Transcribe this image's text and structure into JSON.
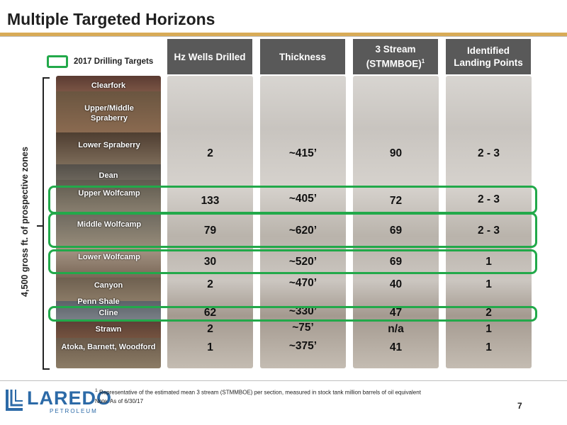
{
  "title": "Multiple Targeted Horizons",
  "legend": {
    "label": "2017 Drilling Targets",
    "color": "#22a94a"
  },
  "headers": {
    "hz_wells": "Hz Wells Drilled",
    "thickness": "Thickness",
    "stream_line1": "3 Stream",
    "stream_line2": "(STMMBOE)",
    "stream_sup": "1",
    "landing_line1": "Identified",
    "landing_line2": "Landing Points"
  },
  "side_label": "4,500 gross ft. of prospective zones",
  "zones": [
    "Clearfork",
    "Upper/Middle Spraberry",
    "Lower Spraberry",
    "Dean",
    "Upper Wolfcamp",
    "Middle Wolfcamp",
    "Lower Wolfcamp",
    "Canyon",
    "Penn Shale",
    "Cline",
    "Strawn",
    "Atoka, Barnett, Woodford"
  ],
  "rows": [
    {
      "zone": "Lower Spraberry",
      "wells": "2",
      "thickness": "~415’",
      "stream": "90",
      "landing": "2 - 3"
    },
    {
      "zone": "Upper Wolfcamp",
      "wells": "133",
      "thickness": "~405’",
      "stream": "72",
      "landing": "2 - 3"
    },
    {
      "zone": "Middle Wolfcamp",
      "wells": "79",
      "thickness": "~620’",
      "stream": "69",
      "landing": "2 - 3"
    },
    {
      "zone": "Lower Wolfcamp",
      "wells": "30",
      "thickness": "~520’",
      "stream": "69",
      "landing": "1"
    },
    {
      "zone": "Canyon",
      "wells": "2",
      "thickness": "~470’",
      "stream": "40",
      "landing": "1"
    },
    {
      "zone": "Cline",
      "wells": "62",
      "thickness": "~330’",
      "stream": "47",
      "landing": "2"
    },
    {
      "zone": "Strawn",
      "wells": "2",
      "thickness": "~75’",
      "stream": "n/a",
      "landing": "1"
    },
    {
      "zone": "Atoka, Barnett, Woodford",
      "wells": "1",
      "thickness": "~375’",
      "stream": "41",
      "landing": "1"
    }
  ],
  "highlighted_zones": [
    "Upper Wolfcamp",
    "Middle Wolfcamp",
    "Lower Wolfcamp",
    "Cline"
  ],
  "footnote_sup": "1",
  "footnote": "Representative of the estimated mean 3 stream (STMMBOE) per section, measured in stock tank million barrels of oil equivalent",
  "note": "Note: As of 6/30/17",
  "logo": {
    "name": "LAREDO",
    "sub": "PETROLEUM"
  },
  "page_number": "7",
  "colors": {
    "accent_gold": "#d8ab57",
    "header_gray": "#595959",
    "brand_blue": "#2c6aa7",
    "highlight_green": "#22a94a"
  }
}
